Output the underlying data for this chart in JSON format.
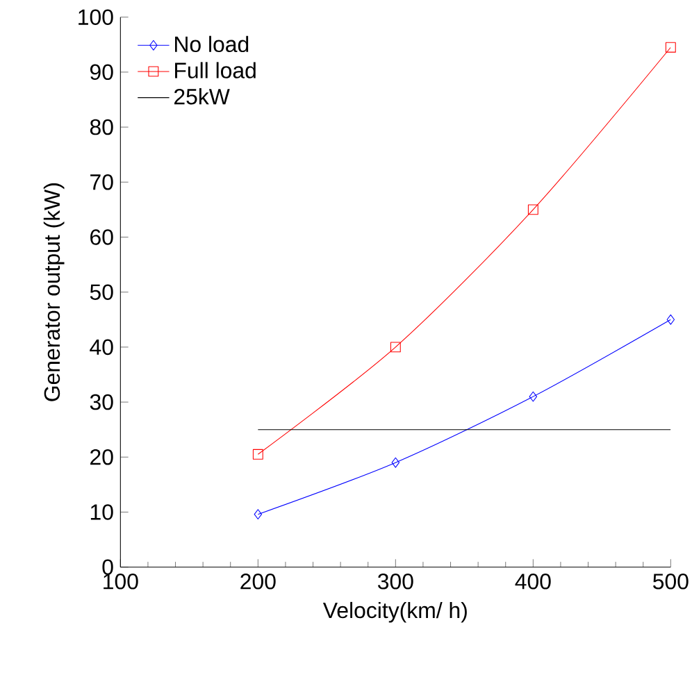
{
  "chart_data": {
    "type": "line",
    "xlabel": "Velocity(km/ h)",
    "ylabel": "Generator output  (kW)",
    "xlim": [
      100,
      500
    ],
    "xticks": [
      100,
      200,
      300,
      400,
      500
    ],
    "ylim": [
      0,
      100
    ],
    "yticks": [
      0,
      10,
      20,
      30,
      40,
      50,
      60,
      70,
      80,
      90,
      100
    ],
    "grid": false,
    "legend": "top left",
    "series": [
      {
        "name": "No load",
        "color": "#0000ff",
        "marker": "diamond",
        "x": [
          200,
          300,
          400,
          500
        ],
        "values": [
          9.6,
          19,
          31,
          45
        ]
      },
      {
        "name": "Full load",
        "color": "#ff0000",
        "marker": "square",
        "x": [
          200,
          300,
          400,
          500
        ],
        "values": [
          20.5,
          40,
          65,
          94.5
        ]
      },
      {
        "name": "25kW",
        "color": "#000000",
        "marker": "none",
        "x": [
          200,
          500
        ],
        "values": [
          25,
          25
        ]
      }
    ]
  }
}
